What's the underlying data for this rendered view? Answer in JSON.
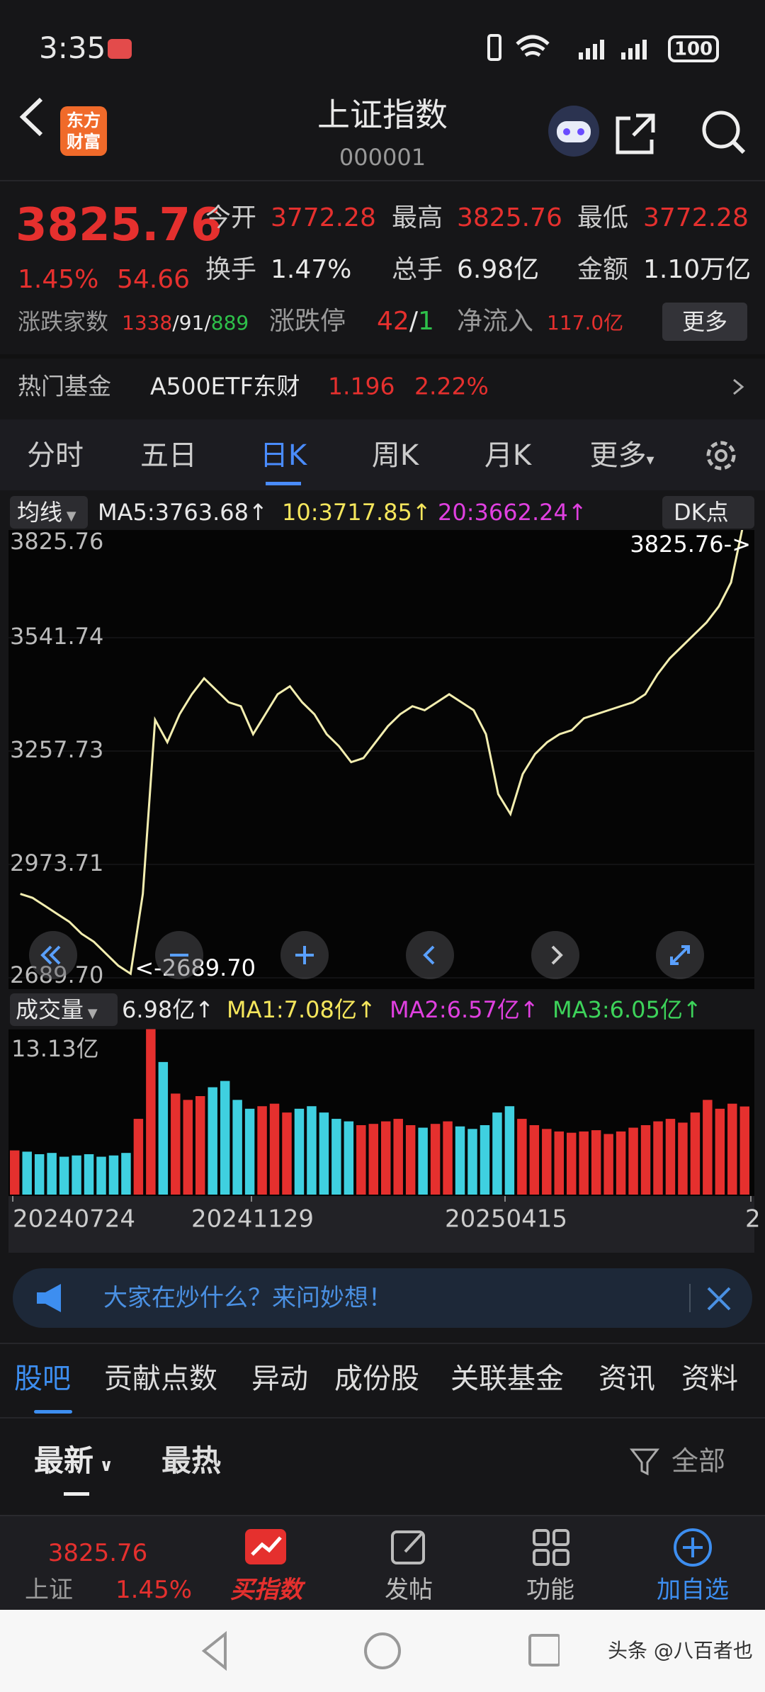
{
  "status": {
    "time": "3:35",
    "battery": "100"
  },
  "header": {
    "logo": [
      "东方",
      "财富"
    ],
    "title": "上证指数",
    "code": "000001"
  },
  "quote": {
    "price": "3825.76",
    "pct": "1.45%",
    "change": "54.66",
    "stats": [
      {
        "label": "今开",
        "value": "3772.28"
      },
      {
        "label": "最高",
        "value": "3825.76"
      },
      {
        "label": "最低",
        "value": "3772.28"
      },
      {
        "label": "换手",
        "value": "1.47%"
      },
      {
        "label": "总手",
        "value": "6.98亿"
      },
      {
        "label": "金额",
        "value": "1.10万亿"
      }
    ],
    "breadth": {
      "label": "涨跌家数",
      "up": "1338",
      "flat": "91",
      "down": "889"
    },
    "limit": {
      "label": "涨跌停",
      "up": "42",
      "down": "1"
    },
    "inflow": {
      "label": "净流入",
      "value": "117.0亿"
    },
    "more": "更多"
  },
  "fund": {
    "label": "热门基金",
    "name": "A500ETF东财",
    "price": "1.196",
    "pct": "2.22%"
  },
  "periods": [
    "分时",
    "五日",
    "日K",
    "周K",
    "月K",
    "更多"
  ],
  "ma": {
    "label": "均线",
    "ma5": "MA5:3763.68↑",
    "ma10": "10:3717.85↑",
    "ma20": "20:3662.24↑",
    "dk": "DK点"
  },
  "volume_header": {
    "label": "成交量",
    "value": "6.98亿↑",
    "ma1": "MA1:7.08亿↑",
    "ma2": "MA2:6.57亿↑",
    "ma3": "MA3:6.05亿↑"
  },
  "chart_data": [
    {
      "type": "line",
      "color": "#f3eeb0",
      "values": [
        2900,
        2890,
        2870,
        2850,
        2830,
        2800,
        2780,
        2750,
        2720,
        2700,
        2900,
        3336,
        3280,
        3350,
        3400,
        3440,
        3410,
        3380,
        3370,
        3300,
        3350,
        3400,
        3420,
        3380,
        3350,
        3300,
        3270,
        3230,
        3240,
        3280,
        3320,
        3350,
        3370,
        3360,
        3380,
        3400,
        3380,
        3360,
        3300,
        3150,
        3100,
        3200,
        3250,
        3280,
        3300,
        3310,
        3340,
        3350,
        3360,
        3370,
        3380,
        3400,
        3450,
        3490,
        3520,
        3550,
        3580,
        3620,
        3680,
        3825.76
      ],
      "ylim": [
        2689.7,
        3825.76
      ],
      "yticks": [
        3825.76,
        3541.74,
        3257.73,
        2973.71,
        {
          "value": 2689.7,
          "label": "2689.70"
        }
      ],
      "annotations": {
        "max": "3825.76->",
        "min": "<-2689.70"
      }
    },
    {
      "type": "bar",
      "up_color": "#e5302e",
      "down_color": "#3fd0e0",
      "values": [
        3.5,
        3.4,
        3.2,
        3.3,
        3.0,
        3.1,
        3.2,
        3.0,
        3.1,
        3.3,
        6.0,
        13.13,
        10.5,
        8.0,
        7.5,
        7.8,
        8.5,
        9.0,
        7.5,
        6.8,
        7.0,
        7.2,
        6.5,
        6.8,
        7.0,
        6.5,
        6.0,
        5.8,
        5.5,
        5.6,
        5.8,
        6.0,
        5.5,
        5.3,
        5.6,
        5.8,
        5.4,
        5.2,
        5.5,
        6.5,
        7.0,
        6.0,
        5.5,
        5.2,
        5.0,
        4.9,
        5.0,
        5.1,
        4.8,
        5.0,
        5.3,
        5.5,
        5.8,
        6.0,
        5.7,
        6.5,
        7.5,
        6.8,
        7.2,
        6.98
      ],
      "ylim": [
        0,
        13.13
      ],
      "yticks": [
        {
          "value": 13.13,
          "label": "13.13亿"
        }
      ]
    }
  ],
  "dates": [
    "20240724",
    "20241129",
    "20250415",
    "2"
  ],
  "banner": "大家在炒什么？来问妙想！",
  "tabs": [
    "股吧",
    "贡献点数",
    "异动",
    "成份股",
    "关联基金",
    "资讯",
    "资料"
  ],
  "sort": [
    "最新",
    "最热"
  ],
  "filter": "全部",
  "nav": {
    "price": "3825.76",
    "name": "上证",
    "pct": "1.45%",
    "items": [
      "买指数",
      "发帖",
      "功能",
      "加自选"
    ]
  },
  "footer": "头条 @八百者也"
}
